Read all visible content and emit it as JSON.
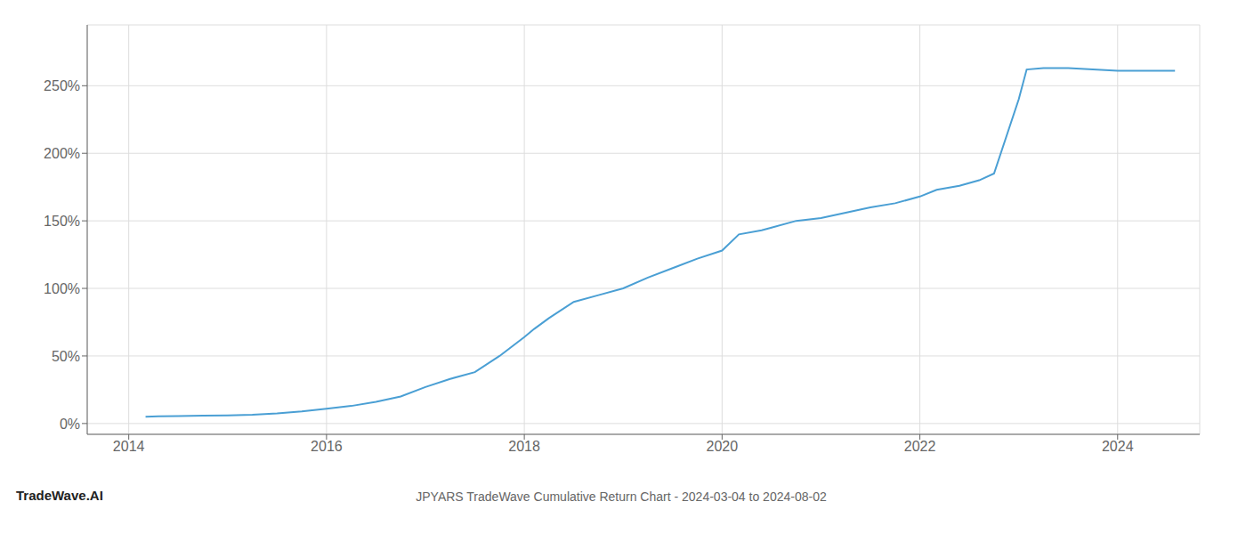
{
  "chart_data": {
    "type": "line",
    "title": "JPYARS TradeWave Cumulative Return Chart - 2024-03-04 to 2024-08-02",
    "annotations": [
      "TradeWave.AI"
    ],
    "color": "#4a9fd4",
    "grid": true,
    "x": [
      2014.17,
      2014.3,
      2014.5,
      2014.75,
      2015.0,
      2015.25,
      2015.5,
      2015.75,
      2016.0,
      2016.25,
      2016.5,
      2016.75,
      2017.0,
      2017.25,
      2017.5,
      2017.75,
      2018.0,
      2018.1,
      2018.25,
      2018.5,
      2018.75,
      2019.0,
      2019.25,
      2019.5,
      2019.75,
      2020.0,
      2020.17,
      2020.4,
      2020.5,
      2020.75,
      2021.0,
      2021.25,
      2021.5,
      2021.75,
      2022.0,
      2022.17,
      2022.4,
      2022.6,
      2022.75,
      2023.0,
      2023.08,
      2023.25,
      2023.5,
      2023.75,
      2024.0,
      2024.25,
      2024.58
    ],
    "values": [
      5,
      5.3,
      5.5,
      5.8,
      6.0,
      6.5,
      7.5,
      9,
      11,
      13,
      16,
      20,
      27,
      33,
      38,
      50,
      64,
      70,
      78,
      90,
      95,
      100,
      108,
      115,
      122,
      128,
      140,
      143,
      145,
      150,
      152,
      156,
      160,
      163,
      168,
      173,
      176,
      180,
      185,
      240,
      262,
      263,
      263,
      262,
      261,
      261,
      261
    ],
    "xlim": [
      2013.58,
      2024.83
    ],
    "ylim": [
      -8,
      295
    ],
    "xticks": [
      2014,
      2016,
      2018,
      2020,
      2022,
      2024
    ],
    "yticks": [
      {
        "value": 0,
        "label": "0%"
      },
      {
        "value": 50,
        "label": "50%"
      },
      {
        "value": 100,
        "label": "100%"
      },
      {
        "value": 150,
        "label": "150%"
      },
      {
        "value": 200,
        "label": "200%"
      },
      {
        "value": 250,
        "label": "250%"
      }
    ]
  }
}
